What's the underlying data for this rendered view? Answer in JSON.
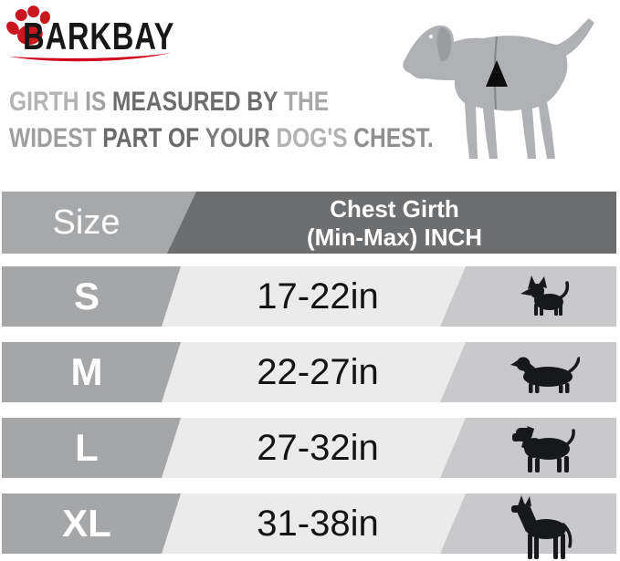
{
  "brand": {
    "name": "BARKBAY",
    "paw_color": "#c9161f",
    "swoosh_color": "#d0021b",
    "text_color": "#171717"
  },
  "tagline": {
    "full_text": "GIRTH IS MEASURED BY THE WIDEST PART OF YOUR DOG'S CHEST.",
    "lines": [
      [
        {
          "t": "GIRTH",
          "c": "#b4b4b4"
        },
        {
          "t": "IS",
          "c": "#a2a2a2"
        },
        {
          "t": "MEASURED",
          "c": "#6d6d6d"
        },
        {
          "t": "BY",
          "c": "#6d6d6d"
        },
        {
          "t": "THE",
          "c": "#a8a8a8"
        }
      ],
      [
        {
          "t": "WIDEST",
          "c": "#9e9e9e"
        },
        {
          "t": "PART",
          "c": "#6a6a6a"
        },
        {
          "t": "OF",
          "c": "#6a6a6a"
        },
        {
          "t": "YOUR",
          "c": "#7d7d7d"
        },
        {
          "t": "DOG'S",
          "c": "#b2b2b2"
        },
        {
          "t": "CHEST.",
          "c": "#8f8f8f"
        }
      ]
    ]
  },
  "table": {
    "header": {
      "col1": "Size",
      "col2_line1": "Chest Girth",
      "col2_line2": "(Min-Max)  INCH"
    },
    "rows": [
      {
        "size": "S",
        "girth": "17-22in",
        "icon": "chihuahua"
      },
      {
        "size": "M",
        "girth": "22-27in",
        "icon": "dachshund"
      },
      {
        "size": "L",
        "girth": "27-32in",
        "icon": "medium-dog"
      },
      {
        "size": "XL",
        "girth": "31-38in",
        "icon": "great-dane"
      }
    ]
  },
  "colors": {
    "header_dark": "#6d6e70",
    "header_light": "#a7a8aa",
    "label_cell": "#a5a6a8",
    "value_cell": "#ebebec",
    "icon_cell": "#c9c9cb",
    "diagram_dog": "#b0b1b4",
    "icon_black": "#17181a"
  },
  "chart_data": {
    "type": "table",
    "title": "GIRTH IS MEASURED BY THE WIDEST PART OF YOUR DOG'S CHEST.",
    "columns": [
      "Size",
      "Chest Girth (Min-Max) INCH"
    ],
    "rows": [
      [
        "S",
        "17-22in"
      ],
      [
        "M",
        "22-27in"
      ],
      [
        "L",
        "27-32in"
      ],
      [
        "XL",
        "31-38in"
      ]
    ]
  }
}
